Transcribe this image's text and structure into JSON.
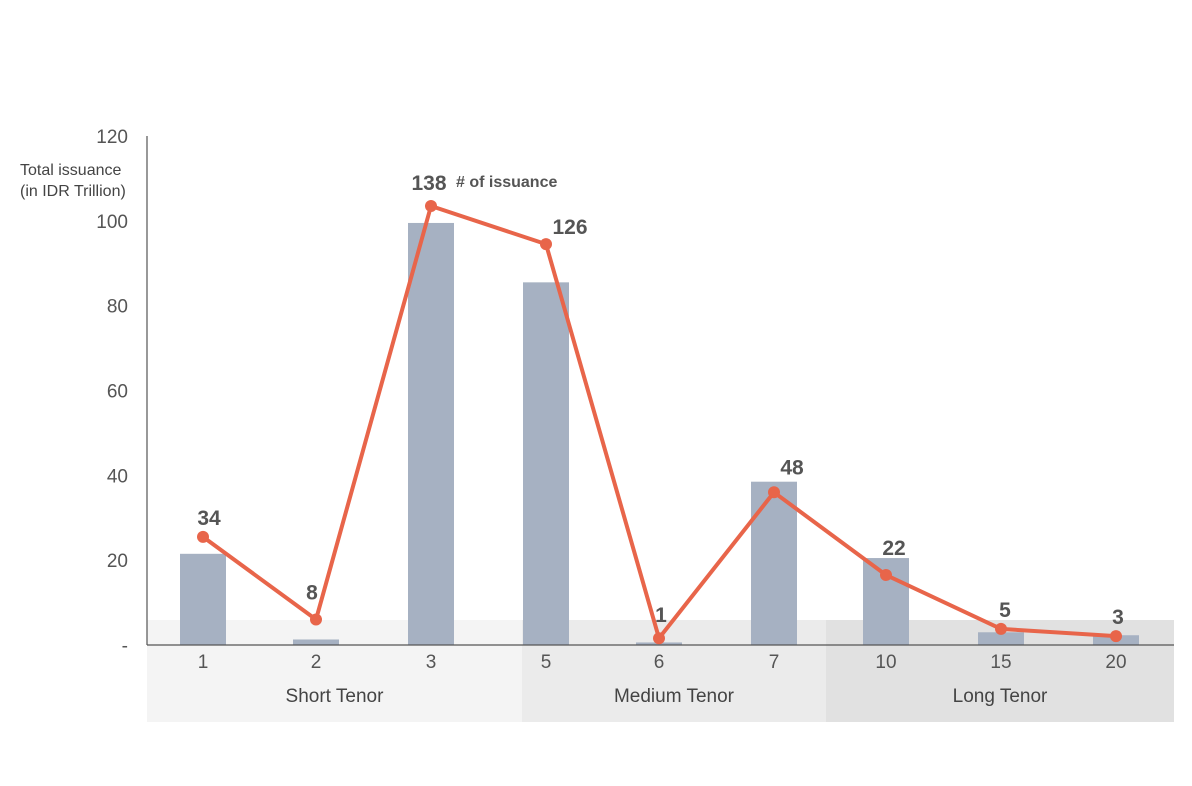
{
  "chart_data": {
    "type": "bar",
    "categories": [
      "1",
      "2",
      "3",
      "5",
      "6",
      "7",
      "10",
      "15",
      "20"
    ],
    "y_tick_labels": [
      "-",
      "20",
      "40",
      "60",
      "80",
      "100",
      "120"
    ],
    "ylabel_lines": [
      "Total issuance",
      "(in IDR Trillion)"
    ],
    "ylim": [
      0,
      120
    ],
    "grid": false,
    "series": [
      {
        "type": "bar",
        "values": [
          21.5,
          1.3,
          99.5,
          85.5,
          0.6,
          38.5,
          20.5,
          3.0,
          2.3
        ],
        "color": "#a6b1c2"
      },
      {
        "type": "line",
        "name": "# of issuance",
        "values": [
          25.5,
          6.0,
          103.5,
          94.5,
          1.6,
          36.0,
          16.5,
          3.8,
          2.1
        ],
        "labels": [
          "34",
          "8",
          "138",
          "126",
          "1",
          "48",
          "22",
          "5",
          "3"
        ],
        "color": "#e8654a"
      }
    ],
    "annotation": "# of issuance",
    "groups": [
      {
        "label": "Short Tenor",
        "from": 0,
        "to": 2,
        "color": "#f4f4f4"
      },
      {
        "label": "Medium Tenor",
        "from": 3,
        "to": 5,
        "color": "#ebebeb"
      },
      {
        "label": "Long Tenor",
        "from": 6,
        "to": 8,
        "color": "#e1e1e1"
      }
    ]
  }
}
